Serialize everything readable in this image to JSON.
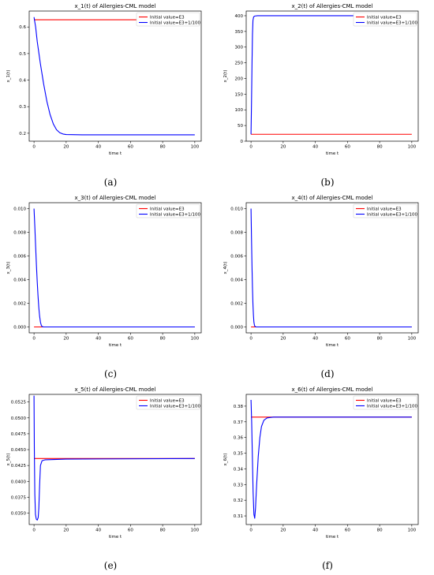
{
  "legend_labels": [
    "Initial value=E3",
    "Initial value=E3+1/100"
  ],
  "series_colors": [
    "#ff0000",
    "#0000ff"
  ],
  "chart_data": [
    {
      "type": "line",
      "caption": "(a)",
      "title": "x_1(t) of Allergies-CML model",
      "xlabel": "time t",
      "ylabel": "x_1(t)",
      "xlim": [
        -3,
        104
      ],
      "ylim": [
        0.17,
        0.66
      ],
      "xticks": [
        0,
        20,
        40,
        60,
        80,
        100
      ],
      "yticks": [
        0.2,
        0.3,
        0.4,
        0.5,
        0.6
      ],
      "ytick_labels": [
        "0.2",
        "0.3",
        "0.4",
        "0.5",
        "0.6"
      ],
      "legend": "top-right",
      "series": [
        {
          "name": "Initial value=E3",
          "points": [
            [
              0,
              0.627
            ],
            [
              100,
              0.627
            ]
          ]
        },
        {
          "name": "Initial value=E3+1/100",
          "points": [
            [
              0,
              0.637
            ],
            [
              1,
              0.6
            ],
            [
              2,
              0.545
            ],
            [
              4,
              0.46
            ],
            [
              6,
              0.385
            ],
            [
              8,
              0.32
            ],
            [
              10,
              0.27
            ],
            [
              12,
              0.235
            ],
            [
              14,
              0.213
            ],
            [
              16,
              0.202
            ],
            [
              18,
              0.197
            ],
            [
              20,
              0.195
            ],
            [
              30,
              0.194
            ],
            [
              100,
              0.194
            ]
          ]
        }
      ]
    },
    {
      "type": "line",
      "caption": "(b)",
      "title": "x_2(t) of Allergies-CML model",
      "xlabel": "time t",
      "ylabel": "x_2(t)",
      "xlim": [
        -3,
        104
      ],
      "ylim": [
        0,
        415
      ],
      "xticks": [
        0,
        20,
        40,
        60,
        80,
        100
      ],
      "yticks": [
        0,
        50,
        100,
        150,
        200,
        250,
        300,
        350,
        400
      ],
      "ytick_labels": [
        "0",
        "50",
        "100",
        "150",
        "200",
        "250",
        "300",
        "350",
        "400"
      ],
      "legend": "top-right",
      "series": [
        {
          "name": "Initial value=E3",
          "points": [
            [
              0,
              22
            ],
            [
              100,
              22
            ]
          ]
        },
        {
          "name": "Initial value=E3+1/100",
          "points": [
            [
              0,
              22
            ],
            [
              0.3,
              120
            ],
            [
              0.6,
              240
            ],
            [
              0.9,
              340
            ],
            [
              1.2,
              385
            ],
            [
              1.6,
              396
            ],
            [
              2.2,
              399
            ],
            [
              4,
              400
            ],
            [
              100,
              400
            ]
          ]
        }
      ]
    },
    {
      "type": "line",
      "caption": "(c)",
      "title": "x_3(t) of Allergies-CML model",
      "xlabel": "time t",
      "ylabel": "x_3(t)",
      "xlim": [
        -3,
        104
      ],
      "ylim": [
        -0.0005,
        0.0105
      ],
      "xticks": [
        0,
        20,
        40,
        60,
        80,
        100
      ],
      "yticks": [
        0,
        0.002,
        0.004,
        0.006,
        0.008,
        0.01
      ],
      "ytick_labels": [
        "0.000",
        "0.002",
        "0.004",
        "0.006",
        "0.008",
        "0.010"
      ],
      "legend": "top-right",
      "series": [
        {
          "name": "Initial value=E3",
          "points": [
            [
              0,
              0
            ],
            [
              100,
              0
            ]
          ]
        },
        {
          "name": "Initial value=E3+1/100",
          "points": [
            [
              0,
              0.01
            ],
            [
              0.5,
              0.0085
            ],
            [
              1,
              0.0068
            ],
            [
              1.5,
              0.0052
            ],
            [
              2,
              0.0038
            ],
            [
              2.5,
              0.0026
            ],
            [
              3,
              0.0016
            ],
            [
              3.5,
              0.0009
            ],
            [
              4,
              0.0004
            ],
            [
              4.5,
              0.00015
            ],
            [
              5,
              3e-05
            ],
            [
              6,
              0
            ],
            [
              100,
              0
            ]
          ]
        }
      ]
    },
    {
      "type": "line",
      "caption": "(d)",
      "title": "x_4(t) of Allergies-CML model",
      "xlabel": "time t",
      "ylabel": "x_4(t)",
      "xlim": [
        -3,
        104
      ],
      "ylim": [
        -0.0005,
        0.0105
      ],
      "xticks": [
        0,
        20,
        40,
        60,
        80,
        100
      ],
      "yticks": [
        0,
        0.002,
        0.004,
        0.006,
        0.008,
        0.01
      ],
      "ytick_labels": [
        "0.000",
        "0.002",
        "0.004",
        "0.006",
        "0.008",
        "0.010"
      ],
      "legend": "top-right",
      "series": [
        {
          "name": "Initial value=E3",
          "points": [
            [
              0,
              0
            ],
            [
              100,
              0
            ]
          ]
        },
        {
          "name": "Initial value=E3+1/100",
          "points": [
            [
              0,
              0.01
            ],
            [
              0.3,
              0.0075
            ],
            [
              0.6,
              0.0052
            ],
            [
              0.9,
              0.0033
            ],
            [
              1.2,
              0.0019
            ],
            [
              1.5,
              0.001
            ],
            [
              1.8,
              0.0004
            ],
            [
              2.2,
              0.0001
            ],
            [
              3,
              0
            ],
            [
              100,
              0
            ]
          ]
        }
      ]
    },
    {
      "type": "line",
      "caption": "(e)",
      "title": "x_5(t) of Allergies-CML model",
      "xlabel": "time t",
      "ylabel": "x_5(t)",
      "xlim": [
        -3,
        104
      ],
      "ylim": [
        0.0332,
        0.0537
      ],
      "xticks": [
        0,
        20,
        40,
        60,
        80,
        100
      ],
      "yticks": [
        0.035,
        0.0375,
        0.04,
        0.0425,
        0.045,
        0.0475,
        0.05,
        0.0525
      ],
      "ytick_labels": [
        "0.0350",
        "0.0375",
        "0.0400",
        "0.0425",
        "0.0450",
        "0.0475",
        "0.0500",
        "0.0525"
      ],
      "legend": "top-right",
      "series": [
        {
          "name": "Initial value=E3",
          "points": [
            [
              0,
              0.0436
            ],
            [
              100,
              0.0436
            ]
          ]
        },
        {
          "name": "Initial value=E3+1/100",
          "points": [
            [
              0,
              0.0535
            ],
            [
              0.2,
              0.045
            ],
            [
              0.5,
              0.038
            ],
            [
              0.9,
              0.0348
            ],
            [
              1.4,
              0.03405
            ],
            [
              2,
              0.0339
            ],
            [
              2.6,
              0.0343
            ],
            [
              3,
              0.0358
            ],
            [
              3.5,
              0.0395
            ],
            [
              4,
              0.0425
            ],
            [
              5,
              0.04325
            ],
            [
              7,
              0.0434
            ],
            [
              20,
              0.0435
            ],
            [
              100,
              0.0436
            ]
          ]
        }
      ]
    },
    {
      "type": "line",
      "caption": "(f)",
      "title": "x_6(t) of Allergies-CML model",
      "xlabel": "time t",
      "ylabel": "x_6(t)",
      "xlim": [
        -3,
        104
      ],
      "ylim": [
        0.3045,
        0.3875
      ],
      "xticks": [
        0,
        20,
        40,
        60,
        80,
        100
      ],
      "yticks": [
        0.31,
        0.32,
        0.33,
        0.34,
        0.35,
        0.36,
        0.37,
        0.38
      ],
      "ytick_labels": [
        "0.31",
        "0.32",
        "0.33",
        "0.34",
        "0.35",
        "0.36",
        "0.37",
        "0.38"
      ],
      "legend": "top-right",
      "series": [
        {
          "name": "Initial value=E3",
          "points": [
            [
              0,
              0.373
            ],
            [
              100,
              0.373
            ]
          ]
        },
        {
          "name": "Initial value=E3+1/100",
          "points": [
            [
              0,
              0.384
            ],
            [
              0.4,
              0.37
            ],
            [
              0.8,
              0.35
            ],
            [
              1.3,
              0.325
            ],
            [
              1.8,
              0.311
            ],
            [
              2.3,
              0.3085
            ],
            [
              2.8,
              0.315
            ],
            [
              3.5,
              0.33
            ],
            [
              4.5,
              0.348
            ],
            [
              5.5,
              0.36
            ],
            [
              6.5,
              0.367
            ],
            [
              8,
              0.371
            ],
            [
              10,
              0.3725
            ],
            [
              14,
              0.373
            ],
            [
              100,
              0.373
            ]
          ]
        }
      ]
    }
  ]
}
